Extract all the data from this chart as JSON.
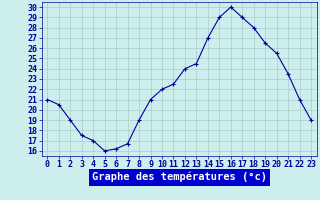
{
  "hours": [
    0,
    1,
    2,
    3,
    4,
    5,
    6,
    7,
    8,
    9,
    10,
    11,
    12,
    13,
    14,
    15,
    16,
    17,
    18,
    19,
    20,
    21,
    22,
    23
  ],
  "temperatures": [
    21,
    20.5,
    19,
    17.5,
    17,
    16,
    16.2,
    16.7,
    19,
    21,
    22,
    22.5,
    24,
    24.5,
    27,
    29,
    30,
    29,
    28,
    26.5,
    25.5,
    23.5,
    21,
    19
  ],
  "bg_color": "#cceeed",
  "line_color": "#00009a",
  "marker_color": "#00009a",
  "grid_color": "#aacccc",
  "ylabel_ticks": [
    16,
    17,
    18,
    19,
    20,
    21,
    22,
    23,
    24,
    25,
    26,
    27,
    28,
    29,
    30
  ],
  "ylim": [
    15.5,
    30.5
  ],
  "xlim": [
    -0.5,
    23.5
  ],
  "xlabel": "Graphe des températures (°c)",
  "xlabel_bg": "#0000cc",
  "xlabel_color": "#ffffff",
  "tick_fontsize": 6.0,
  "label_fontsize": 7.5
}
